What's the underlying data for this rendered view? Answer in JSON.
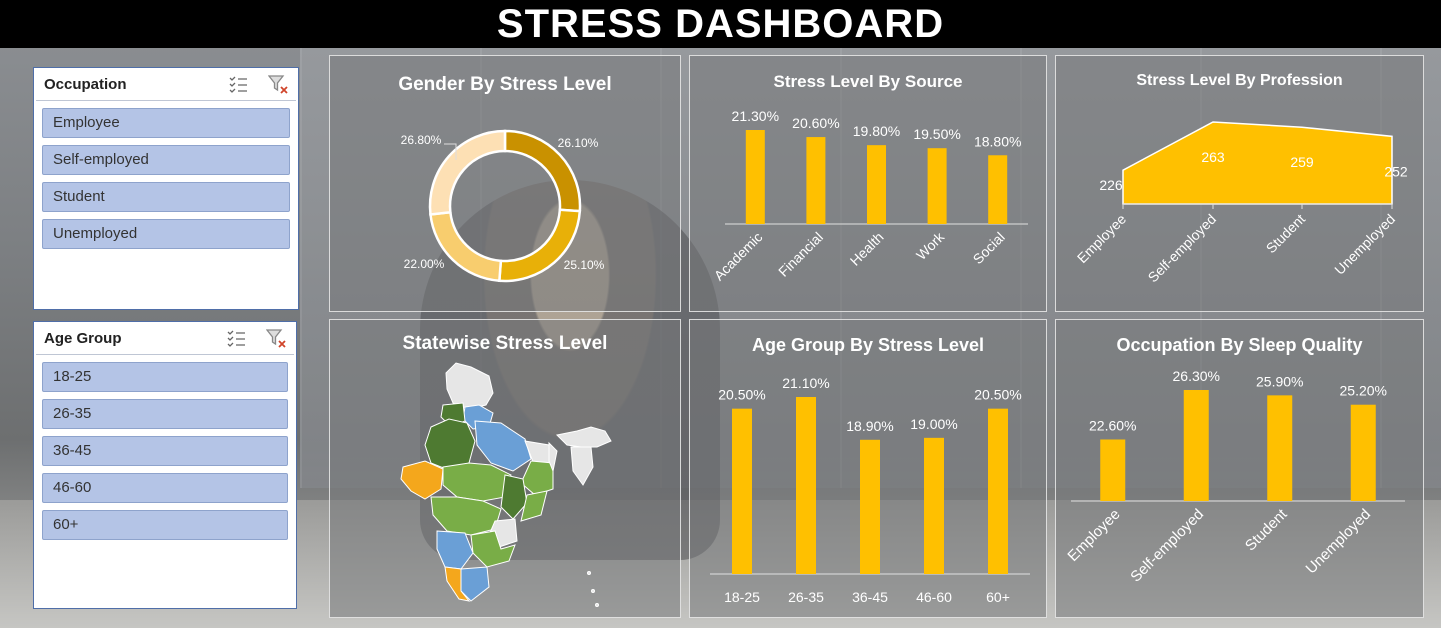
{
  "dashboard": {
    "title": "STRESS DASHBOARD"
  },
  "slicers": {
    "occupation": {
      "title": "Occupation",
      "items": [
        "Employee",
        "Self-employed",
        "Student",
        "Unemployed"
      ]
    },
    "age_group": {
      "title": "Age Group",
      "items": [
        "18-25",
        "26-35",
        "36-45",
        "46-60",
        "60+"
      ]
    },
    "icons": {
      "multiselect": "multiselect-icon",
      "clear_filter": "clear-filter-icon"
    }
  },
  "colors": {
    "bar": "#ffc000",
    "donut": [
      "#c99100",
      "#e8b008",
      "#f8cd6e",
      "#fde0b4"
    ],
    "map_dark_green": "#4e7a31",
    "map_light_green": "#79ad47",
    "map_blue": "#6a9fd6",
    "map_orange": "#f4a71c",
    "map_grey": "#e6e6e6"
  },
  "panels": {
    "gender": {
      "title": "Gender By Stress Level"
    },
    "source": {
      "title": "Stress  Level By Source"
    },
    "profession": {
      "title": "Stress Level By Profession"
    },
    "statewise": {
      "title": "Statewise Stress Level"
    },
    "age": {
      "title": "Age Group By Stress Level"
    },
    "sleep": {
      "title": "Occupation By Sleep Quality"
    }
  },
  "chart_data": [
    {
      "id": "gender",
      "type": "pie",
      "title": "Gender By Stress Level",
      "values": [
        26.1,
        25.1,
        22.0,
        26.8
      ],
      "labels": [
        "26.10%",
        "25.10%",
        "22.00%",
        "26.80%"
      ]
    },
    {
      "id": "source",
      "type": "bar",
      "title": "Stress  Level By Source",
      "categories": [
        "Academic",
        "Financial",
        "Health",
        "Work",
        "Social"
      ],
      "values": [
        21.3,
        20.6,
        19.8,
        19.5,
        18.8
      ],
      "labels": [
        "21.30%",
        "20.60%",
        "19.80%",
        "19.50%",
        "18.80%"
      ]
    },
    {
      "id": "profession",
      "type": "area",
      "title": "Stress Level By Profession",
      "categories": [
        "Employee",
        "Self-employed",
        "Student",
        "Unemployed"
      ],
      "values": [
        226,
        263,
        259,
        252
      ],
      "labels": [
        "226",
        "263",
        "259",
        "252"
      ]
    },
    {
      "id": "age",
      "type": "bar",
      "title": "Age Group By Stress Level",
      "categories": [
        "18-25",
        "26-35",
        "36-45",
        "46-60",
        "60+"
      ],
      "values": [
        20.5,
        21.1,
        18.9,
        19.0,
        20.5
      ],
      "labels": [
        "20.50%",
        "21.10%",
        "18.90%",
        "19.00%",
        "20.50%"
      ]
    },
    {
      "id": "sleep",
      "type": "bar",
      "title": "Occupation By Sleep Quality",
      "categories": [
        "Employee",
        "Self-employed",
        "Student",
        "Unemployed"
      ],
      "values": [
        22.6,
        26.3,
        25.9,
        25.2
      ],
      "labels": [
        "22.60%",
        "26.30%",
        "25.90%",
        "25.20%"
      ]
    }
  ]
}
